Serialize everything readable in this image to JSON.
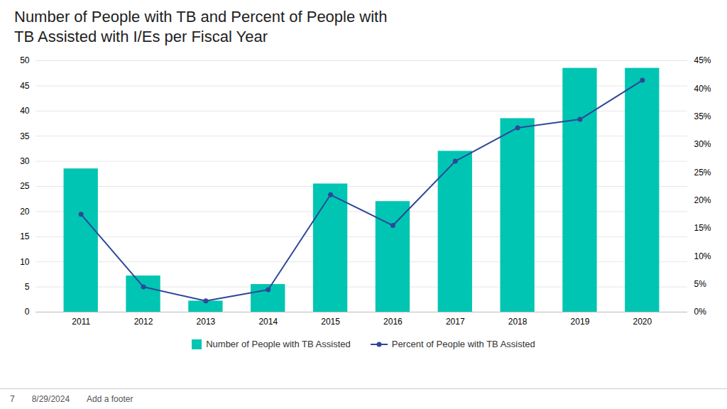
{
  "chart_data": {
    "type": "bar",
    "title": "Number of People with TB and Percent of People with\nTB Assisted with I/Es per Fiscal Year",
    "categories": [
      "2011",
      "2012",
      "2013",
      "2014",
      "2015",
      "2016",
      "2017",
      "2018",
      "2019",
      "2020"
    ],
    "series": [
      {
        "name": "Number of People with TB Assisted",
        "type": "bar",
        "color": "#00C5B2",
        "values": [
          28.5,
          7.2,
          2.2,
          5.5,
          25.5,
          22.0,
          32.0,
          38.5,
          48.5,
          48.5
        ]
      },
      {
        "name": "Percent of People with TB Assisted",
        "type": "line",
        "color": "#2E4799",
        "marker": "circle",
        "axis": "y2",
        "values": [
          0.175,
          0.045,
          0.02,
          0.04,
          0.21,
          0.155,
          0.27,
          0.33,
          0.345,
          0.415
        ]
      }
    ],
    "ylim": [
      0,
      50
    ],
    "yticks": [
      0,
      5,
      10,
      15,
      20,
      25,
      30,
      35,
      40,
      45,
      50
    ],
    "y2lim": [
      0,
      0.45
    ],
    "y2ticks": [
      {
        "value": 0,
        "label": "0%"
      },
      {
        "value": 0.05,
        "label": "5%"
      },
      {
        "value": 0.1,
        "label": "10%"
      },
      {
        "value": 0.15,
        "label": "15%"
      },
      {
        "value": 0.2,
        "label": "20%"
      },
      {
        "value": 0.25,
        "label": "25%"
      },
      {
        "value": 0.3,
        "label": "30%"
      },
      {
        "value": 0.35,
        "label": "35%"
      },
      {
        "value": 0.4,
        "label": "40%"
      },
      {
        "value": 0.45,
        "label": "45%"
      }
    ],
    "grid": true,
    "legend": "bottom",
    "annotations": [
      "7",
      "8/29/2024",
      "Add a footer"
    ]
  }
}
